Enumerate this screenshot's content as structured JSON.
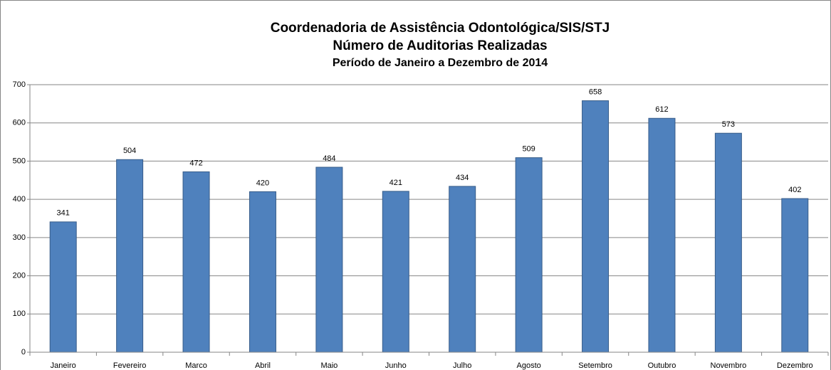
{
  "chart_data": {
    "type": "bar",
    "title": "Coordenadoria de Assistência Odontológica/SIS/STJ",
    "subtitle": "Número de Auditorias Realizadas",
    "period": "Período de Janeiro a Dezembro de 2014",
    "categories": [
      "Janeiro",
      "Fevereiro",
      "Marco",
      "Abril",
      "Maio",
      "Junho",
      "Julho",
      "Agosto",
      "Setembro",
      "Outubro",
      "Novembro",
      "Dezembro"
    ],
    "values": [
      341,
      504,
      472,
      420,
      484,
      421,
      434,
      509,
      658,
      612,
      573,
      402
    ],
    "color": "#4f81bd",
    "ylim": [
      0,
      700
    ],
    "yticks": [
      0,
      100,
      200,
      300,
      400,
      500,
      600,
      700
    ],
    "grid": true
  }
}
